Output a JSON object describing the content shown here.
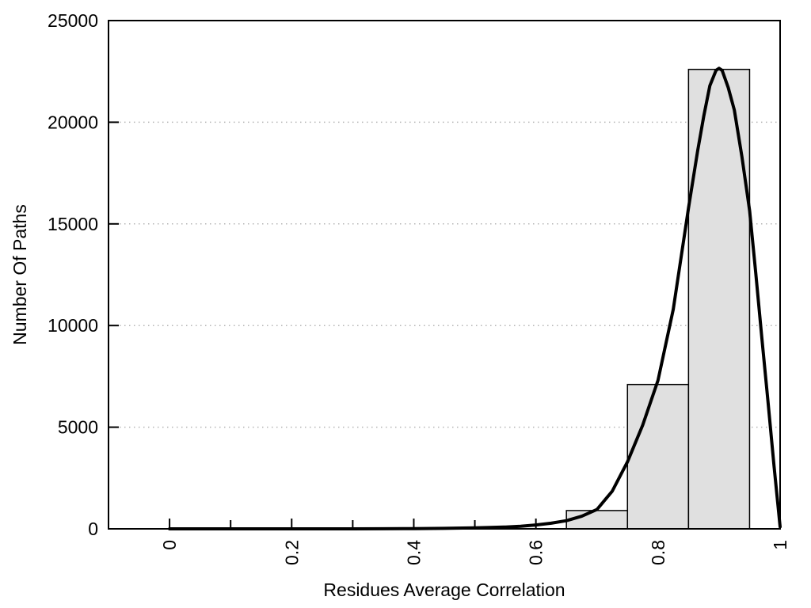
{
  "chart_data": {
    "type": "bar",
    "subtype": "histogram-with-density-curve",
    "title": "",
    "xlabel": "Residues Average Correlation",
    "ylabel": "Number Of Paths",
    "xlim": [
      -0.1,
      1.0
    ],
    "ylim": [
      0,
      25000
    ],
    "x_major_ticks": [
      0,
      0.2,
      0.4,
      0.6,
      0.8,
      1.0
    ],
    "x_major_tick_labels": [
      "0",
      "0.2",
      "0.4",
      "0.6",
      "0.8",
      "1"
    ],
    "x_minor_ticks": [
      0.1,
      0.3,
      0.5,
      0.7,
      0.9
    ],
    "y_ticks": [
      0,
      5000,
      10000,
      15000,
      20000,
      25000
    ],
    "y_tick_labels": [
      "0",
      "5000",
      "10000",
      "15000",
      "20000",
      "25000"
    ],
    "grid": {
      "axis": "y",
      "style": "dotted",
      "on": true
    },
    "legend": {
      "visible": false
    },
    "bars": {
      "bins": [
        {
          "x0": 0.65,
          "x1": 0.75,
          "count": 900
        },
        {
          "x0": 0.75,
          "x1": 0.85,
          "count": 7100
        },
        {
          "x0": 0.85,
          "x1": 0.95,
          "count": 22600
        }
      ]
    },
    "curve": {
      "name": "density-fit",
      "x": [
        0,
        0.05,
        0.1,
        0.15,
        0.2,
        0.25,
        0.3,
        0.35,
        0.4,
        0.45,
        0.5,
        0.525,
        0.55,
        0.575,
        0.6,
        0.625,
        0.65,
        0.675,
        0.7,
        0.725,
        0.75,
        0.775,
        0.8,
        0.825,
        0.85,
        0.865,
        0.875,
        0.885,
        0.895,
        0.9,
        0.905,
        0.915,
        0.925,
        0.9375,
        0.95,
        0.96,
        0.97,
        0.98,
        0.99,
        1.0
      ],
      "y": [
        0,
        0,
        0,
        0,
        0,
        0,
        0,
        5,
        10,
        25,
        45,
        65,
        90,
        130,
        190,
        275,
        400,
        620,
        950,
        1850,
        3300,
        5100,
        7300,
        10800,
        15800,
        18600,
        20300,
        21800,
        22550,
        22650,
        22550,
        21700,
        20600,
        18300,
        15650,
        12600,
        9400,
        6300,
        3100,
        100
      ]
    },
    "colors": {
      "bar_fill": "#e0e0e0",
      "bar_stroke": "#000000",
      "curve": "#000000",
      "axis": "#000000",
      "grid": "#b4b4b4",
      "text": "#000000",
      "background": "#ffffff"
    }
  }
}
